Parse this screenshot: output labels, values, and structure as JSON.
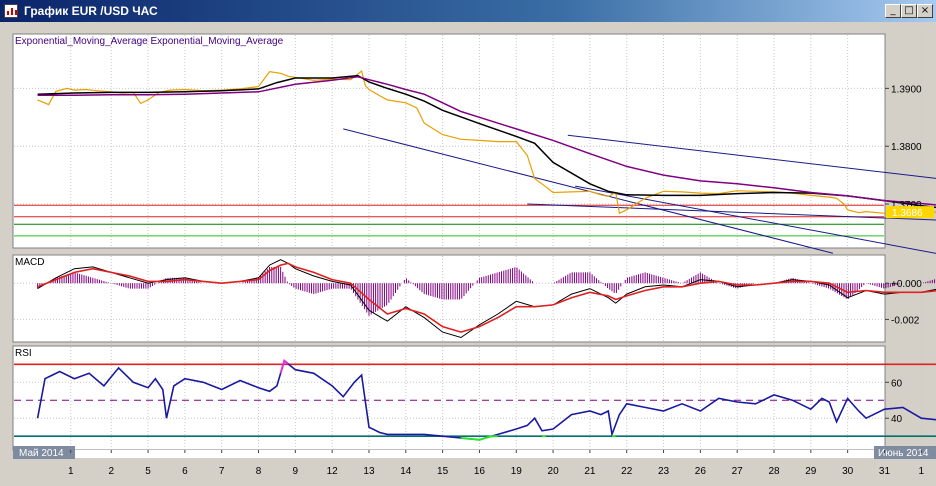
{
  "window": {
    "title": "График EUR /USD  ЧАС",
    "buttons": {
      "minimize": "_",
      "maximize": "□",
      "close": "×"
    }
  },
  "chart_data": [
    {
      "panel": "price",
      "type": "line",
      "title": "Exponential_Moving_Average Exponential_Moving_Average",
      "y_ticks": [
        "1.3900",
        "1.3800",
        "1.3700"
      ],
      "y_tick_values": [
        1.39,
        1.38,
        1.37
      ],
      "ylim": [
        1.3624,
        1.3994
      ],
      "current_price_label": "1.3686",
      "current_price": 1.3686,
      "horizontal_levels": [
        {
          "value": 1.3698,
          "color": "#e02020"
        },
        {
          "value": 1.3678,
          "color": "#e02020"
        },
        {
          "value": 1.3665,
          "color": "#008000"
        },
        {
          "value": 1.3645,
          "color": "#20c020"
        }
      ],
      "trend_lines": [
        {
          "from": [
            14.4,
            1.3819
          ],
          "to": [
            31.8,
            1.3689
          ],
          "color": "#1a1a8a"
        },
        {
          "from": [
            13.3,
            1.37
          ],
          "to": [
            31.8,
            1.3654
          ],
          "color": "#1a1a8a"
        },
        {
          "from": [
            8.3,
            1.383
          ],
          "to": [
            21.6,
            1.3615
          ],
          "color": "#1a1a8a"
        },
        {
          "from": [
            14.6,
            1.3731
          ],
          "to": [
            24.8,
            1.361
          ],
          "color": "#1a1a8a"
        }
      ],
      "series": [
        {
          "role": "price",
          "color": "#e8a000",
          "x": [
            0.0,
            0.3,
            0.5,
            0.8,
            1.0,
            1.3,
            1.6,
            2.0,
            2.3,
            2.6,
            2.8,
            3.0,
            3.3,
            3.6,
            4.0,
            4.5,
            5.0,
            5.5,
            6.0,
            6.3,
            6.6,
            6.8,
            7.0,
            7.5,
            8.0,
            8.5,
            8.8,
            8.9,
            9.0,
            9.3,
            9.5,
            10.0,
            10.3,
            10.5,
            11.0,
            11.5,
            12.0,
            12.5,
            13.0,
            13.3,
            13.5,
            13.8,
            14.0,
            14.5,
            15.0,
            15.3,
            15.5,
            15.7,
            15.8,
            16.0,
            16.5,
            17.0,
            17.5,
            18.0,
            18.5,
            19.0,
            19.5,
            20.0,
            20.5,
            21.0,
            21.5,
            21.7,
            21.9,
            22.0,
            22.3,
            22.5,
            23.0,
            23.5,
            24.0,
            24.5,
            25.0,
            25.5,
            26.0,
            26.5,
            27.0,
            27.3,
            27.5,
            28.0,
            28.3,
            28.5,
            29.0,
            29.2
          ],
          "y": [
            1.388,
            1.3872,
            1.3895,
            1.39,
            1.3897,
            1.3898,
            1.3896,
            1.3894,
            1.3892,
            1.3893,
            1.3874,
            1.388,
            1.3893,
            1.3897,
            1.3898,
            1.3896,
            1.3897,
            1.3899,
            1.3903,
            1.3929,
            1.3926,
            1.3921,
            1.3919,
            1.3914,
            1.3916,
            1.3915,
            1.393,
            1.3905,
            1.3898,
            1.3887,
            1.388,
            1.3875,
            1.3866,
            1.384,
            1.382,
            1.3812,
            1.381,
            1.3808,
            1.3808,
            1.3784,
            1.3744,
            1.373,
            1.372,
            1.3721,
            1.3722,
            1.3716,
            1.3713,
            1.372,
            1.3684,
            1.369,
            1.371,
            1.3722,
            1.3721,
            1.3719,
            1.3718,
            1.3723,
            1.3722,
            1.3721,
            1.3719,
            1.3715,
            1.3712,
            1.371,
            1.37,
            1.369,
            1.3685,
            1.3687,
            1.3684,
            1.3684,
            1.3686,
            1.3686,
            1.3683,
            1.3682,
            1.3671,
            1.3669,
            1.3671,
            1.3672,
            1.3671,
            1.3669,
            1.3669,
            1.3669,
            1.3672,
            1.367
          ]
        },
        {
          "role": "ema-fast",
          "color": "#000000",
          "x": [
            0.0,
            1.0,
            2.0,
            3.0,
            4.0,
            5.0,
            6.0,
            6.5,
            7.0,
            8.0,
            8.7,
            9.0,
            9.5,
            10.0,
            10.5,
            11.0,
            12.0,
            13.0,
            13.5,
            14.0,
            15.0,
            15.5,
            16.0,
            17.0,
            18.0,
            19.0,
            20.0,
            21.0,
            22.0,
            23.0,
            24.0,
            25.0,
            26.0,
            27.0,
            28.0,
            28.5,
            29.0,
            29.2
          ],
          "y": [
            1.389,
            1.3892,
            1.3893,
            1.3893,
            1.3894,
            1.3896,
            1.3899,
            1.391,
            1.3918,
            1.3918,
            1.3922,
            1.3911,
            1.39,
            1.389,
            1.3878,
            1.3862,
            1.3839,
            1.3817,
            1.3805,
            1.3772,
            1.3735,
            1.3722,
            1.3716,
            1.3715,
            1.3715,
            1.3718,
            1.372,
            1.3719,
            1.3714,
            1.3706,
            1.3697,
            1.369,
            1.3683,
            1.3675,
            1.3671,
            1.3672,
            1.3671,
            1.367
          ]
        },
        {
          "role": "ema-slow",
          "color": "#800080",
          "x": [
            0.0,
            1.0,
            2.0,
            3.0,
            4.0,
            5.0,
            6.0,
            7.0,
            8.0,
            8.7,
            9.0,
            9.5,
            10.0,
            10.5,
            11.0,
            11.5,
            12.0,
            13.0,
            14.0,
            15.0,
            16.0,
            17.0,
            18.0,
            19.0,
            20.0,
            21.0,
            22.0,
            23.0,
            24.0,
            25.0,
            26.0,
            27.0,
            28.0,
            28.5,
            29.0,
            29.2
          ],
          "y": [
            1.3888,
            1.3888,
            1.3889,
            1.3889,
            1.389,
            1.3892,
            1.3894,
            1.3907,
            1.3914,
            1.392,
            1.3915,
            1.3907,
            1.3898,
            1.389,
            1.3875,
            1.386,
            1.385,
            1.383,
            1.381,
            1.3787,
            1.3765,
            1.375,
            1.374,
            1.3735,
            1.3728,
            1.372,
            1.3714,
            1.3706,
            1.3701,
            1.3695,
            1.3688,
            1.3682,
            1.3678,
            1.3677,
            1.3675,
            1.3675
          ]
        }
      ]
    },
    {
      "panel": "macd",
      "type": "line",
      "title": "MACD",
      "y_ticks": [
        "+0.000",
        "-0.002"
      ],
      "y_tick_values": [
        0.0,
        -0.002
      ],
      "ylim": [
        -0.00325,
        0.00156
      ],
      "series": [
        {
          "role": "macd",
          "color": "#000000",
          "x": [
            0.0,
            0.5,
            1.0,
            1.5,
            2.0,
            2.5,
            3.0,
            3.5,
            4.0,
            4.5,
            5.0,
            5.5,
            6.0,
            6.3,
            6.6,
            6.8,
            7.0,
            7.5,
            8.0,
            8.5,
            9.0,
            9.5,
            10.0,
            10.5,
            11.0,
            11.5,
            12.0,
            12.5,
            13.0,
            13.5,
            14.0,
            14.5,
            15.0,
            15.5,
            15.7,
            16.0,
            16.5,
            17.0,
            17.5,
            18.0,
            18.5,
            19.0,
            19.5,
            20.0,
            20.5,
            21.0,
            21.5,
            22.0,
            22.5,
            23.0,
            23.5,
            24.0,
            24.5,
            25.0,
            25.5,
            26.0,
            26.5,
            27.0,
            27.5,
            28.0,
            28.5,
            29.0,
            29.2
          ],
          "y": [
            -0.0003,
            0.0003,
            0.0008,
            0.0009,
            0.0006,
            0.0003,
            0.0,
            0.0002,
            0.0003,
            0.0001,
            0.0,
            0.0001,
            0.0003,
            0.001,
            0.0013,
            0.0011,
            0.0008,
            0.0004,
            0.0001,
            -0.0001,
            -0.0015,
            -0.0021,
            -0.0013,
            -0.0019,
            -0.0027,
            -0.003,
            -0.0023,
            -0.0017,
            -0.001,
            -0.0013,
            -0.0012,
            -0.0006,
            -0.0003,
            -0.0008,
            -0.0011,
            -0.0006,
            -0.0002,
            -0.0001,
            -0.0002,
            0.0002,
            0.0001,
            -0.0002,
            -0.0001,
            0.0,
            0.0002,
            0.0001,
            -0.0001,
            -0.0008,
            -0.0004,
            -0.0006,
            -0.0005,
            -0.0005,
            -0.0003,
            -0.0004,
            -0.0005,
            -0.0003,
            0.0001,
            0.0006,
            0.0004,
            -0.0003,
            -0.0009,
            -0.0008,
            -0.0007
          ]
        },
        {
          "role": "signal",
          "color": "#e02020",
          "x": [
            0.0,
            0.5,
            1.0,
            1.5,
            2.0,
            2.5,
            3.0,
            3.5,
            4.0,
            4.5,
            5.0,
            5.5,
            6.0,
            6.3,
            6.6,
            6.8,
            7.0,
            7.5,
            8.0,
            8.5,
            9.0,
            9.5,
            10.0,
            10.5,
            11.0,
            11.5,
            12.0,
            12.5,
            13.0,
            13.5,
            14.0,
            14.5,
            15.0,
            15.5,
            15.7,
            16.0,
            16.5,
            17.0,
            17.5,
            18.0,
            18.5,
            19.0,
            19.5,
            20.0,
            20.5,
            21.0,
            21.5,
            22.0,
            22.5,
            23.0,
            23.5,
            24.0,
            24.5,
            25.0,
            25.5,
            26.0,
            26.5,
            27.0,
            27.5,
            28.0,
            28.5,
            29.0,
            29.2
          ],
          "y": [
            -0.0002,
            0.0002,
            0.0006,
            0.0008,
            0.0006,
            0.0004,
            0.0001,
            0.0001,
            0.0002,
            0.0001,
            0.0,
            0.0001,
            0.0002,
            0.0007,
            0.001,
            0.0011,
            0.0009,
            0.0006,
            0.0002,
            0.0,
            -0.0009,
            -0.0017,
            -0.0014,
            -0.0017,
            -0.0024,
            -0.0027,
            -0.0024,
            -0.0019,
            -0.0013,
            -0.0013,
            -0.0012,
            -0.0008,
            -0.0005,
            -0.0007,
            -0.0009,
            -0.0007,
            -0.0004,
            -0.0002,
            -0.0002,
            0.0,
            0.0001,
            -0.0001,
            -0.0001,
            0.0,
            0.0001,
            0.0001,
            0.0,
            -0.0005,
            -0.0004,
            -0.0005,
            -0.0005,
            -0.0005,
            -0.0004,
            -0.0004,
            -0.0004,
            -0.0003,
            0.0,
            0.0004,
            0.0004,
            0.0,
            -0.0006,
            -0.0007,
            -0.0007
          ]
        }
      ]
    },
    {
      "panel": "rsi",
      "type": "line",
      "title": "RSI",
      "y_ticks": [
        "60",
        "40"
      ],
      "y_tick_values": [
        60,
        40
      ],
      "ylim": [
        22.3,
        80.2
      ],
      "levels": [
        {
          "value": 70,
          "color": "#e02020",
          "style": "solid"
        },
        {
          "value": 50,
          "color": "#800080",
          "style": "dashed"
        },
        {
          "value": 30,
          "color": "#007070",
          "style": "solid"
        }
      ],
      "oversold_segments": [
        [
          11.5,
          12.5
        ],
        [
          13.7,
          13.8
        ],
        [
          15.6,
          15.7
        ]
      ],
      "overbought_segments": [
        [
          6.6,
          6.8
        ]
      ],
      "series": [
        {
          "role": "rsi",
          "color": "#1a1aa0",
          "x": [
            0.0,
            0.2,
            0.4,
            0.6,
            1.0,
            1.4,
            1.8,
            2.0,
            2.2,
            2.6,
            3.0,
            3.2,
            3.4,
            3.5,
            3.7,
            4.0,
            4.5,
            5.0,
            5.5,
            6.0,
            6.3,
            6.5,
            6.7,
            7.0,
            7.5,
            8.0,
            8.3,
            8.6,
            8.8,
            9.0,
            9.3,
            9.5,
            10.0,
            10.5,
            11.0,
            11.5,
            12.0,
            12.5,
            13.0,
            13.3,
            13.5,
            13.7,
            14.0,
            14.5,
            15.0,
            15.3,
            15.5,
            15.6,
            15.8,
            16.0,
            16.5,
            17.0,
            17.5,
            18.0,
            18.5,
            19.0,
            19.5,
            20.0,
            20.5,
            21.0,
            21.3,
            21.5,
            21.7,
            22.0,
            22.3,
            22.5,
            23.0,
            23.5,
            24.0,
            24.5,
            25.0,
            25.5,
            26.0,
            26.5,
            27.0,
            27.3,
            27.5,
            28.0,
            28.3,
            28.5,
            29.0,
            29.2
          ],
          "y": [
            40,
            62,
            64,
            66,
            62,
            65,
            58,
            63,
            68,
            60,
            57,
            62,
            56,
            40,
            58,
            62,
            60,
            56,
            61,
            57,
            55,
            58,
            72,
            67,
            65,
            58,
            52,
            60,
            64,
            35,
            32,
            31,
            31,
            31,
            30,
            29,
            28,
            31,
            34,
            36,
            40,
            33,
            34,
            42,
            44,
            42,
            44,
            31,
            42,
            48,
            46,
            44,
            48,
            44,
            51,
            49,
            48,
            53,
            50,
            45,
            51,
            49,
            38,
            51,
            44,
            40,
            45,
            46,
            40,
            39,
            41,
            38,
            46,
            40,
            46,
            53,
            62,
            57,
            45,
            38,
            34,
            42
          ]
        }
      ]
    }
  ],
  "x_axis": {
    "month_start": "Май 2014",
    "month_end": "Июнь 2014",
    "ticks": [
      {
        "label": "1",
        "x": 0.9
      },
      {
        "label": "2",
        "x": 2.0
      },
      {
        "label": "5",
        "x": 3.0
      },
      {
        "label": "6",
        "x": 4.0
      },
      {
        "label": "7",
        "x": 5.0
      },
      {
        "label": "8",
        "x": 6.0
      },
      {
        "label": "9",
        "x": 7.0
      },
      {
        "label": "12",
        "x": 8.0
      },
      {
        "label": "13",
        "x": 9.0
      },
      {
        "label": "14",
        "x": 10.0
      },
      {
        "label": "15",
        "x": 11.0
      },
      {
        "label": "16",
        "x": 12.0
      },
      {
        "label": "19",
        "x": 13.0
      },
      {
        "label": "20",
        "x": 14.0
      },
      {
        "label": "21",
        "x": 15.0
      },
      {
        "label": "22",
        "x": 16.0
      },
      {
        "label": "23",
        "x": 17.0
      },
      {
        "label": "26",
        "x": 18.0
      },
      {
        "label": "27",
        "x": 19.0
      },
      {
        "label": "28",
        "x": 20.0
      },
      {
        "label": "29",
        "x": 21.0
      },
      {
        "label": "30",
        "x": 22.0
      },
      {
        "label": "31",
        "x": 23.0
      },
      {
        "label": "1",
        "x": 24.0
      }
    ]
  },
  "colors": {
    "background": "#ffffff",
    "frame": "#d4d0c8",
    "grid": "#c8c8c8",
    "month_label_bg": "#7f8c9f"
  }
}
